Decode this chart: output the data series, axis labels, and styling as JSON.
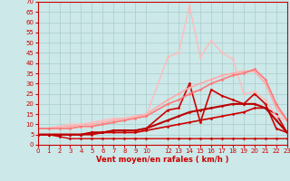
{
  "xlabel": "Vent moyen/en rafales ( km/h )",
  "background_color": "#cce8e8",
  "grid_color": "#aacccc",
  "yticks": [
    0,
    5,
    10,
    15,
    20,
    25,
    30,
    35,
    40,
    45,
    50,
    55,
    60,
    65,
    70
  ],
  "xticks": [
    0,
    1,
    2,
    3,
    4,
    5,
    6,
    7,
    8,
    9,
    10,
    12,
    13,
    14,
    15,
    16,
    17,
    18,
    19,
    20,
    21,
    22,
    23
  ],
  "xlim": [
    0,
    23
  ],
  "ylim": [
    0,
    70
  ],
  "series": [
    {
      "x": [
        0,
        1,
        2,
        3,
        4,
        5,
        6,
        7,
        8,
        9,
        10,
        12,
        13,
        14,
        15,
        16,
        17,
        18,
        19,
        20,
        21,
        22,
        23
      ],
      "y": [
        5,
        5,
        4,
        3,
        3,
        3,
        3,
        3,
        3,
        3,
        3,
        3,
        3,
        3,
        3,
        3,
        3,
        3,
        3,
        3,
        3,
        3,
        3
      ],
      "color": "#cc0000",
      "lw": 1.0,
      "marker": "D",
      "ms": 1.5
    },
    {
      "x": [
        0,
        1,
        2,
        3,
        4,
        5,
        6,
        7,
        8,
        9,
        10,
        12,
        13,
        14,
        15,
        16,
        17,
        18,
        19,
        20,
        21,
        22,
        23
      ],
      "y": [
        5,
        5,
        5,
        5,
        5,
        5,
        6,
        6,
        6,
        6,
        7,
        9,
        10,
        11,
        12,
        13,
        14,
        15,
        16,
        18,
        18,
        15,
        6
      ],
      "color": "#cc0000",
      "lw": 1.2,
      "marker": "D",
      "ms": 1.5
    },
    {
      "x": [
        0,
        1,
        2,
        3,
        4,
        5,
        6,
        7,
        8,
        9,
        10,
        12,
        13,
        14,
        15,
        16,
        17,
        18,
        19,
        20,
        21,
        22,
        23
      ],
      "y": [
        5,
        5,
        5,
        5,
        5,
        6,
        6,
        7,
        7,
        7,
        8,
        17,
        18,
        30,
        11,
        27,
        24,
        22,
        20,
        25,
        20,
        8,
        6
      ],
      "color": "#cc0000",
      "lw": 1.2,
      "marker": "D",
      "ms": 1.5
    },
    {
      "x": [
        0,
        1,
        2,
        3,
        4,
        5,
        6,
        7,
        8,
        9,
        10,
        12,
        13,
        14,
        15,
        16,
        17,
        18,
        19,
        20,
        21,
        22,
        23
      ],
      "y": [
        5,
        5,
        5,
        5,
        5,
        6,
        6,
        7,
        7,
        7,
        8,
        12,
        14,
        16,
        17,
        18,
        19,
        20,
        20,
        20,
        18,
        12,
        6
      ],
      "color": "#bb0000",
      "lw": 1.5,
      "marker": "D",
      "ms": 1.5
    },
    {
      "x": [
        0,
        1,
        2,
        3,
        4,
        5,
        6,
        7,
        8,
        9,
        10,
        12,
        13,
        14,
        15,
        16,
        17,
        18,
        19,
        20,
        21,
        22,
        23
      ],
      "y": [
        8,
        8,
        9,
        9,
        10,
        10,
        11,
        12,
        13,
        14,
        15,
        22,
        25,
        28,
        30,
        32,
        34,
        35,
        36,
        36,
        30,
        18,
        12
      ],
      "color": "#ffaaaa",
      "lw": 1.2,
      "marker": "D",
      "ms": 1.5
    },
    {
      "x": [
        0,
        1,
        2,
        3,
        4,
        5,
        6,
        7,
        8,
        9,
        10,
        12,
        13,
        14,
        15,
        16,
        17,
        18,
        19,
        20,
        21,
        22,
        23
      ],
      "y": [
        8,
        8,
        9,
        10,
        10,
        11,
        12,
        13,
        13,
        14,
        14,
        43,
        45,
        68,
        43,
        51,
        45,
        42,
        25,
        26,
        22,
        14,
        12
      ],
      "color": "#ffbbbb",
      "lw": 1.0,
      "marker": "D",
      "ms": 1.5
    },
    {
      "x": [
        0,
        1,
        2,
        3,
        4,
        5,
        6,
        7,
        8,
        9,
        10,
        12,
        13,
        14,
        15,
        16,
        17,
        18,
        19,
        20,
        21,
        22,
        23
      ],
      "y": [
        8,
        8,
        8,
        8,
        9,
        9,
        10,
        11,
        12,
        13,
        14,
        20,
        22,
        25,
        27,
        30,
        32,
        34,
        35,
        37,
        32,
        20,
        12
      ],
      "color": "#ff7777",
      "lw": 1.2,
      "marker": "D",
      "ms": 1.5
    }
  ]
}
